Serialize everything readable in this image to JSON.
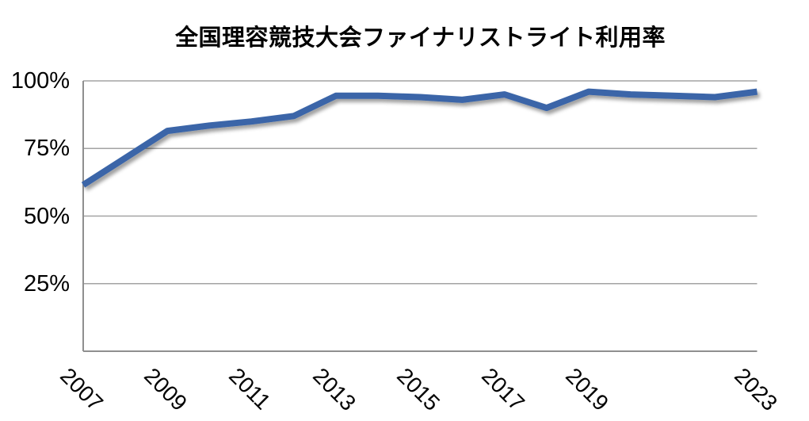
{
  "title": "全国理容競技大会ファイナリストライト利用率",
  "chart_data": {
    "type": "line",
    "title": "全国理容競技大会ファイナリストライト利用率",
    "x": [
      2007,
      2008,
      2009,
      2010,
      2011,
      2012,
      2013,
      2014,
      2015,
      2016,
      2017,
      2018,
      2019,
      2020,
      2021,
      2022,
      2023
    ],
    "values": [
      61.5,
      71.5,
      81.5,
      83.5,
      85,
      87,
      94.5,
      94.5,
      94,
      93,
      95,
      90,
      96,
      95,
      94.5,
      94,
      96
    ],
    "xlim": [
      2007,
      2023
    ],
    "ylim": [
      0,
      100
    ],
    "x_tick_years": [
      2007,
      2009,
      2011,
      2013,
      2015,
      2017,
      2019,
      2023
    ],
    "x_tick_labels": [
      "2007",
      "2009",
      "2011",
      "2013",
      "2015",
      "2017",
      "2019",
      "2023"
    ],
    "y_ticks": [
      25,
      50,
      75,
      100
    ],
    "y_tick_labels": [
      "25%",
      "50%",
      "75%",
      "100%"
    ],
    "grid": true,
    "legend": false,
    "line_color": "#3a65a8",
    "grid_color": "#a3a3a3",
    "axis_color": "#8f8f8f",
    "background_color": "#ffffff"
  }
}
